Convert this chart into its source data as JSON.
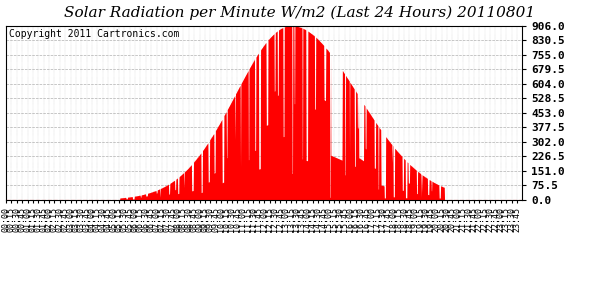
{
  "title": "Solar Radiation per Minute W/m2 (Last 24 Hours) 20110801",
  "copyright": "Copyright 2011 Cartronics.com",
  "yticks": [
    0.0,
    75.5,
    151.0,
    226.5,
    302.0,
    377.5,
    453.0,
    528.5,
    604.0,
    679.5,
    755.0,
    830.5,
    906.0
  ],
  "ymin": 0.0,
  "ymax": 906.0,
  "bar_color": "#ff0000",
  "bg_color": "#ffffff",
  "plot_bg_color": "#ffffff",
  "grid_color": "#b0b0b0",
  "dashed_line_color": "#ff0000",
  "title_fontsize": 11,
  "copyright_fontsize": 7,
  "tick_label_fontsize": 6,
  "ytick_fontsize": 8,
  "sunrise_min": 318,
  "sunset_min": 1222,
  "peak_min": 795,
  "peak_val": 906.0,
  "sigma_rise": 155,
  "sigma_set": 185
}
